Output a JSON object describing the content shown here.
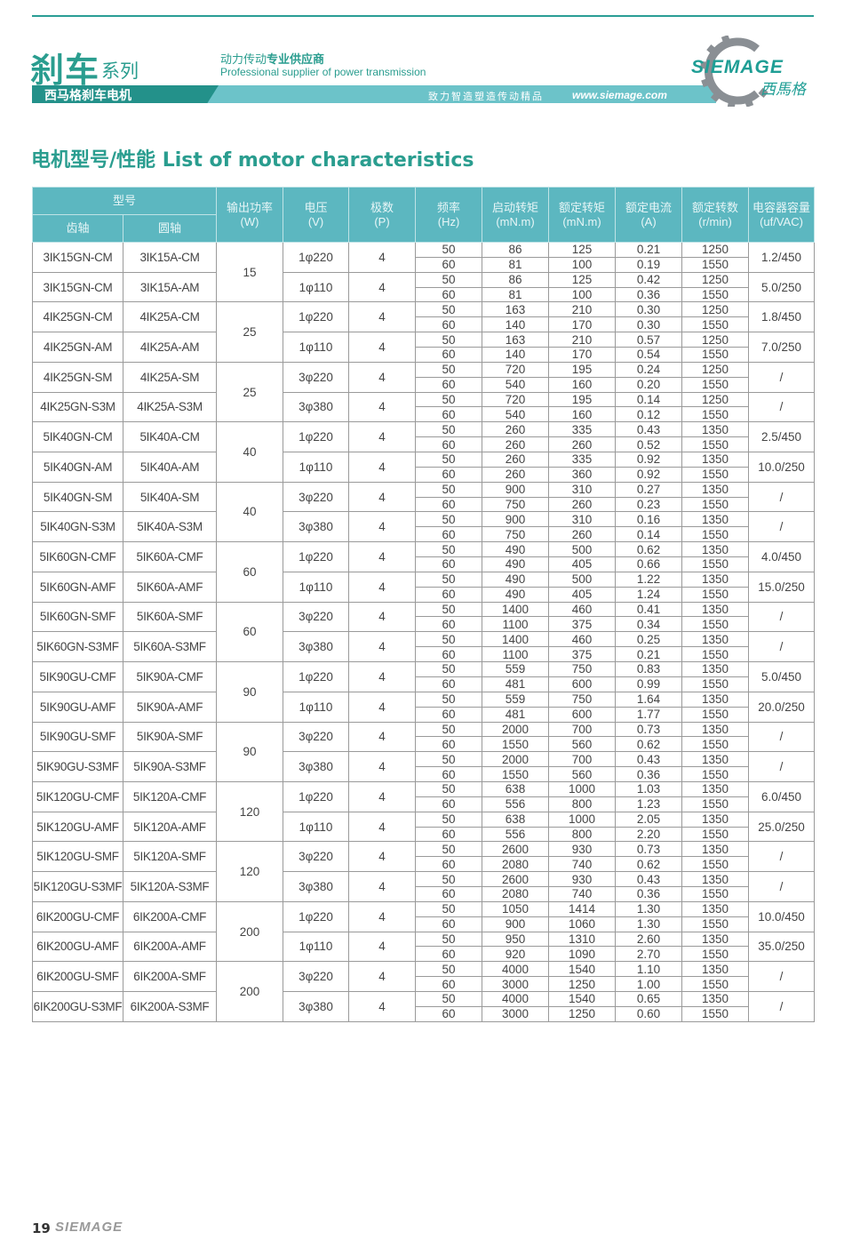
{
  "header": {
    "brand": "刹车",
    "series": "系列",
    "tagline_cn_light": "动力传动",
    "tagline_cn_bold": "专业供应商",
    "tagline_en": "Professional supplier of power transmission",
    "banner_title": "西马格刹车电机",
    "banner_slogan": "致力智造塑造传动精品",
    "banner_url": "www.siemage.com",
    "logo_text": "SIEMAGE",
    "logo_cn": "西馬格"
  },
  "colors": {
    "accent": "#2a9d8f",
    "table_header": "#5cb7c0",
    "banner": "#6cc3c9",
    "banner_dark": "#23918a"
  },
  "page_title": "电机型号/性能 List of motor characteristics",
  "table": {
    "headers": {
      "model": "型号",
      "gear_shaft": "齿轴",
      "round_shaft": "圆轴",
      "power": "输出功率\n(W)",
      "voltage": "电压\n(V)",
      "poles": "极数\n(P)",
      "freq": "频率\n(Hz)",
      "start_torque": "启动转矩\n(mN.m)",
      "rated_torque": "额定转矩\n(mN.m)",
      "rated_current": "额定电流\n(A)",
      "rated_speed": "额定转数\n(r/min)",
      "capacitor": "电容器容量\n(uf/VAC)"
    },
    "groups": [
      {
        "power": "15",
        "models": [
          {
            "gear": "3IK15GN-CM",
            "round": "3IK15A-CM",
            "voltage": "1φ220",
            "poles": "4",
            "cap": "1.2/450",
            "rows": [
              [
                "50",
                "86",
                "125",
                "0.21",
                "1250"
              ],
              [
                "60",
                "81",
                "100",
                "0.19",
                "1550"
              ]
            ]
          },
          {
            "gear": "3IK15GN-CM",
            "round": "3IK15A-AM",
            "voltage": "1φ110",
            "poles": "4",
            "cap": "5.0/250",
            "rows": [
              [
                "50",
                "86",
                "125",
                "0.42",
                "1250"
              ],
              [
                "60",
                "81",
                "100",
                "0.36",
                "1550"
              ]
            ]
          }
        ]
      },
      {
        "power": "25",
        "models": [
          {
            "gear": "4IK25GN-CM",
            "round": "4IK25A-CM",
            "voltage": "1φ220",
            "poles": "4",
            "cap": "1.8/450",
            "rows": [
              [
                "50",
                "163",
                "210",
                "0.30",
                "1250"
              ],
              [
                "60",
                "140",
                "170",
                "0.30",
                "1550"
              ]
            ]
          },
          {
            "gear": "4IK25GN-AM",
            "round": "4IK25A-AM",
            "voltage": "1φ110",
            "poles": "4",
            "cap": "7.0/250",
            "rows": [
              [
                "50",
                "163",
                "210",
                "0.57",
                "1250"
              ],
              [
                "60",
                "140",
                "170",
                "0.54",
                "1550"
              ]
            ]
          }
        ]
      },
      {
        "power": "25",
        "models": [
          {
            "gear": "4IK25GN-SM",
            "round": "4IK25A-SM",
            "voltage": "3φ220",
            "poles": "4",
            "cap": "/",
            "rows": [
              [
                "50",
                "720",
                "195",
                "0.24",
                "1250"
              ],
              [
                "60",
                "540",
                "160",
                "0.20",
                "1550"
              ]
            ]
          },
          {
            "gear": "4IK25GN-S3M",
            "round": "4IK25A-S3M",
            "voltage": "3φ380",
            "poles": "4",
            "cap": "/",
            "rows": [
              [
                "50",
                "720",
                "195",
                "0.14",
                "1250"
              ],
              [
                "60",
                "540",
                "160",
                "0.12",
                "1550"
              ]
            ]
          }
        ]
      },
      {
        "power": "40",
        "models": [
          {
            "gear": "5IK40GN-CM",
            "round": "5IK40A-CM",
            "voltage": "1φ220",
            "poles": "4",
            "cap": "2.5/450",
            "rows": [
              [
                "50",
                "260",
                "335",
                "0.43",
                "1350"
              ],
              [
                "60",
                "260",
                "260",
                "0.52",
                "1550"
              ]
            ]
          },
          {
            "gear": "5IK40GN-AM",
            "round": "5IK40A-AM",
            "voltage": "1φ110",
            "poles": "4",
            "cap": "10.0/250",
            "rows": [
              [
                "50",
                "260",
                "335",
                "0.92",
                "1350"
              ],
              [
                "60",
                "260",
                "360",
                "0.92",
                "1550"
              ]
            ]
          }
        ]
      },
      {
        "power": "40",
        "models": [
          {
            "gear": "5IK40GN-SM",
            "round": "5IK40A-SM",
            "voltage": "3φ220",
            "poles": "4",
            "cap": "/",
            "rows": [
              [
                "50",
                "900",
                "310",
                "0.27",
                "1350"
              ],
              [
                "60",
                "750",
                "260",
                "0.23",
                "1550"
              ]
            ]
          },
          {
            "gear": "5IK40GN-S3M",
            "round": "5IK40A-S3M",
            "voltage": "3φ380",
            "poles": "4",
            "cap": "/",
            "rows": [
              [
                "50",
                "900",
                "310",
                "0.16",
                "1350"
              ],
              [
                "60",
                "750",
                "260",
                "0.14",
                "1550"
              ]
            ]
          }
        ]
      },
      {
        "power": "60",
        "models": [
          {
            "gear": "5IK60GN-CMF",
            "round": "5IK60A-CMF",
            "voltage": "1φ220",
            "poles": "4",
            "cap": "4.0/450",
            "rows": [
              [
                "50",
                "490",
                "500",
                "0.62",
                "1350"
              ],
              [
                "60",
                "490",
                "405",
                "0.66",
                "1550"
              ]
            ]
          },
          {
            "gear": "5IK60GN-AMF",
            "round": "5IK60A-AMF",
            "voltage": "1φ110",
            "poles": "4",
            "cap": "15.0/250",
            "rows": [
              [
                "50",
                "490",
                "500",
                "1.22",
                "1350"
              ],
              [
                "60",
                "490",
                "405",
                "1.24",
                "1550"
              ]
            ]
          }
        ]
      },
      {
        "power": "60",
        "models": [
          {
            "gear": "5IK60GN-SMF",
            "round": "5IK60A-SMF",
            "voltage": "3φ220",
            "poles": "4",
            "cap": "/",
            "rows": [
              [
                "50",
                "1400",
                "460",
                "0.41",
                "1350"
              ],
              [
                "60",
                "1100",
                "375",
                "0.34",
                "1550"
              ]
            ]
          },
          {
            "gear": "5IK60GN-S3MF",
            "round": "5IK60A-S3MF",
            "voltage": "3φ380",
            "poles": "4",
            "cap": "/",
            "rows": [
              [
                "50",
                "1400",
                "460",
                "0.25",
                "1350"
              ],
              [
                "60",
                "1100",
                "375",
                "0.21",
                "1550"
              ]
            ]
          }
        ]
      },
      {
        "power": "90",
        "models": [
          {
            "gear": "5IK90GU-CMF",
            "round": "5IK90A-CMF",
            "voltage": "1φ220",
            "poles": "4",
            "cap": "5.0/450",
            "rows": [
              [
                "50",
                "559",
                "750",
                "0.83",
                "1350"
              ],
              [
                "60",
                "481",
                "600",
                "0.99",
                "1550"
              ]
            ]
          },
          {
            "gear": "5IK90GU-AMF",
            "round": "5IK90A-AMF",
            "voltage": "1φ110",
            "poles": "4",
            "cap": "20.0/250",
            "rows": [
              [
                "50",
                "559",
                "750",
                "1.64",
                "1350"
              ],
              [
                "60",
                "481",
                "600",
                "1.77",
                "1550"
              ]
            ]
          }
        ]
      },
      {
        "power": "90",
        "models": [
          {
            "gear": "5IK90GU-SMF",
            "round": "5IK90A-SMF",
            "voltage": "3φ220",
            "poles": "4",
            "cap": "/",
            "rows": [
              [
                "50",
                "2000",
                "700",
                "0.73",
                "1350"
              ],
              [
                "60",
                "1550",
                "560",
                "0.62",
                "1550"
              ]
            ]
          },
          {
            "gear": "5IK90GU-S3MF",
            "round": "5IK90A-S3MF",
            "voltage": "3φ380",
            "poles": "4",
            "cap": "/",
            "rows": [
              [
                "50",
                "2000",
                "700",
                "0.43",
                "1350"
              ],
              [
                "60",
                "1550",
                "560",
                "0.36",
                "1550"
              ]
            ]
          }
        ]
      },
      {
        "power": "120",
        "models": [
          {
            "gear": "5IK120GU-CMF",
            "round": "5IK120A-CMF",
            "voltage": "1φ220",
            "poles": "4",
            "cap": "6.0/450",
            "rows": [
              [
                "50",
                "638",
                "1000",
                "1.03",
                "1350"
              ],
              [
                "60",
                "556",
                "800",
                "1.23",
                "1550"
              ]
            ]
          },
          {
            "gear": "5IK120GU-AMF",
            "round": "5IK120A-AMF",
            "voltage": "1φ110",
            "poles": "4",
            "cap": "25.0/250",
            "rows": [
              [
                "50",
                "638",
                "1000",
                "2.05",
                "1350"
              ],
              [
                "60",
                "556",
                "800",
                "2.20",
                "1550"
              ]
            ]
          }
        ]
      },
      {
        "power": "120",
        "models": [
          {
            "gear": "5IK120GU-SMF",
            "round": "5IK120A-SMF",
            "voltage": "3φ220",
            "poles": "4",
            "cap": "/",
            "rows": [
              [
                "50",
                "2600",
                "930",
                "0.73",
                "1350"
              ],
              [
                "60",
                "2080",
                "740",
                "0.62",
                "1550"
              ]
            ]
          },
          {
            "gear": "5IK120GU-S3MF",
            "round": "5IK120A-S3MF",
            "voltage": "3φ380",
            "poles": "4",
            "cap": "/",
            "rows": [
              [
                "50",
                "2600",
                "930",
                "0.43",
                "1350"
              ],
              [
                "60",
                "2080",
                "740",
                "0.36",
                "1550"
              ]
            ]
          }
        ]
      },
      {
        "power": "200",
        "models": [
          {
            "gear": "6IK200GU-CMF",
            "round": "6IK200A-CMF",
            "voltage": "1φ220",
            "poles": "4",
            "cap": "10.0/450",
            "rows": [
              [
                "50",
                "1050",
                "1414",
                "1.30",
                "1350"
              ],
              [
                "60",
                "900",
                "1060",
                "1.30",
                "1550"
              ]
            ]
          },
          {
            "gear": "6IK200GU-AMF",
            "round": "6IK200A-AMF",
            "voltage": "1φ110",
            "poles": "4",
            "cap": "35.0/250",
            "rows": [
              [
                "50",
                "950",
                "1310",
                "2.60",
                "1350"
              ],
              [
                "60",
                "920",
                "1090",
                "2.70",
                "1550"
              ]
            ]
          }
        ]
      },
      {
        "power": "200",
        "models": [
          {
            "gear": "6IK200GU-SMF",
            "round": "6IK200A-SMF",
            "voltage": "3φ220",
            "poles": "4",
            "cap": "/",
            "rows": [
              [
                "50",
                "4000",
                "1540",
                "1.10",
                "1350"
              ],
              [
                "60",
                "3000",
                "1250",
                "1.00",
                "1550"
              ]
            ]
          },
          {
            "gear": "6IK200GU-S3MF",
            "round": "6IK200A-S3MF",
            "voltage": "3φ380",
            "poles": "4",
            "cap": "/",
            "rows": [
              [
                "50",
                "4000",
                "1540",
                "0.65",
                "1350"
              ],
              [
                "60",
                "3000",
                "1250",
                "0.60",
                "1550"
              ]
            ]
          }
        ]
      }
    ]
  },
  "footer": {
    "page_number": "19",
    "logo_text": "SIEMAGE"
  }
}
